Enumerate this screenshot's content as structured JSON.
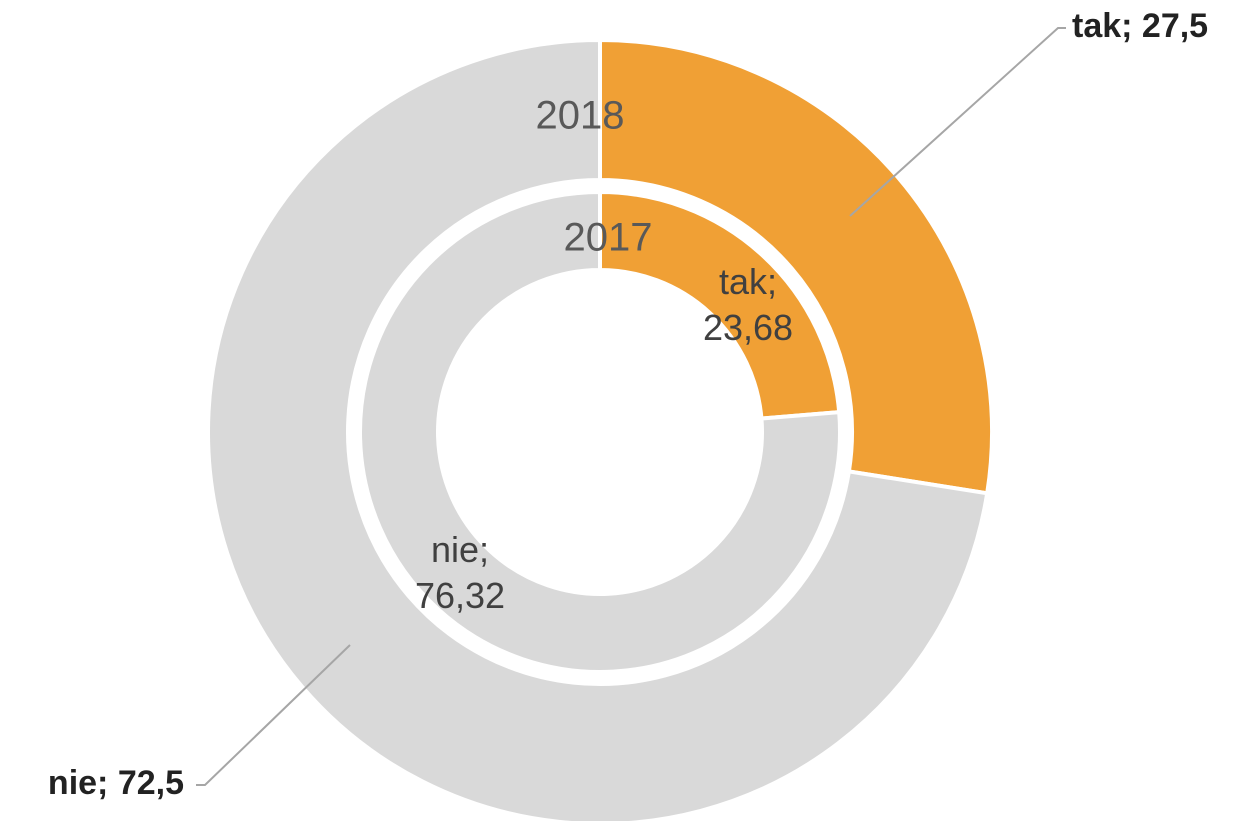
{
  "chart_data": {
    "type": "donut",
    "categories": [
      "tak",
      "nie"
    ],
    "colors": [
      "#f0a035",
      "#d9d9d9"
    ],
    "series": [
      {
        "name": "2018",
        "values": [
          27.5,
          72.5
        ],
        "value_labels": [
          "tak; 27,5",
          "nie; 72,5"
        ]
      },
      {
        "name": "2017",
        "values": [
          23.68,
          76.32
        ],
        "value_labels": [
          "tak; 23,68",
          "nie; 76,32"
        ]
      }
    ]
  }
}
